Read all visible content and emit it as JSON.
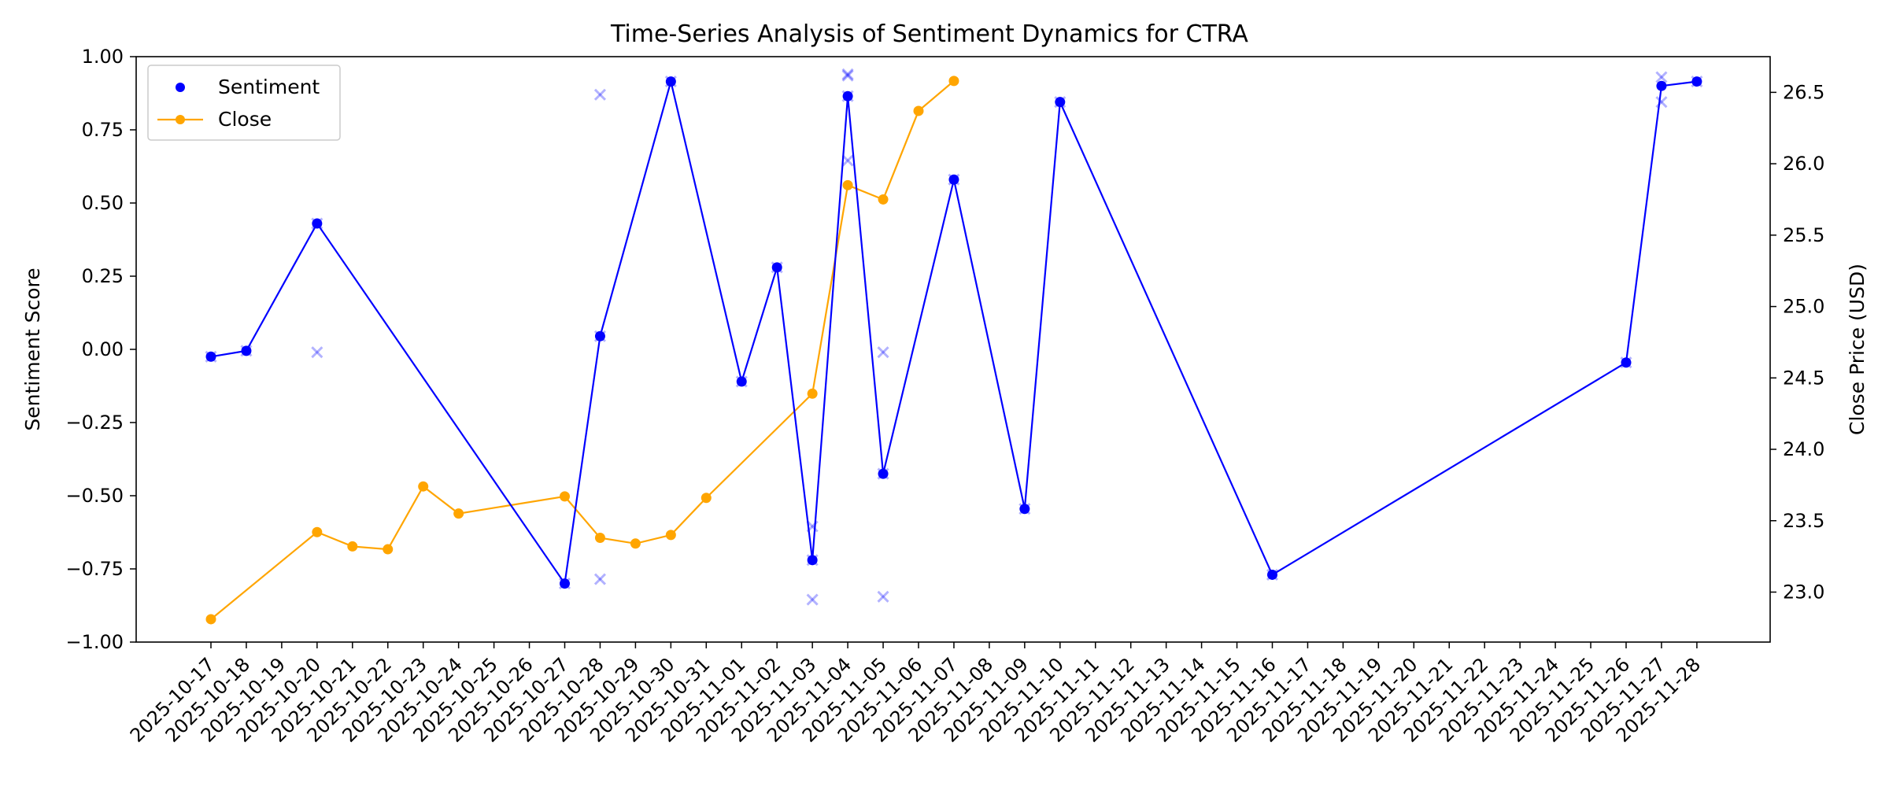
{
  "chart_data": {
    "type": "line",
    "title": "Time-Series Analysis of Sentiment Dynamics for CTRA",
    "xlabel": "",
    "ylabel": "Sentiment Score",
    "y2label": "Close Price (USD)",
    "ylim": [
      -1.0,
      1.0
    ],
    "y2lim": [
      22.65,
      26.75
    ],
    "y_ticks": [
      "−1.00",
      "−0.75",
      "−0.50",
      "−0.25",
      "0.00",
      "0.25",
      "0.50",
      "0.75",
      "1.00"
    ],
    "y2_ticks": [
      "23.0",
      "23.5",
      "24.0",
      "24.5",
      "25.0",
      "25.5",
      "26.0",
      "26.5"
    ],
    "categories": [
      "2025-10-17",
      "2025-10-18",
      "2025-10-19",
      "2025-10-20",
      "2025-10-21",
      "2025-10-22",
      "2025-10-23",
      "2025-10-24",
      "2025-10-25",
      "2025-10-26",
      "2025-10-27",
      "2025-10-28",
      "2025-10-29",
      "2025-10-30",
      "2025-10-31",
      "2025-11-01",
      "2025-11-02",
      "2025-11-03",
      "2025-11-04",
      "2025-11-05",
      "2025-11-06",
      "2025-11-07",
      "2025-11-08",
      "2025-11-09",
      "2025-11-10",
      "2025-11-11",
      "2025-11-12",
      "2025-11-13",
      "2025-11-14",
      "2025-11-15",
      "2025-11-16",
      "2025-11-17",
      "2025-11-18",
      "2025-11-19",
      "2025-11-20",
      "2025-11-21",
      "2025-11-22",
      "2025-11-23",
      "2025-11-24",
      "2025-11-25",
      "2025-11-26",
      "2025-11-27",
      "2025-11-28"
    ],
    "legend_position": "top-left",
    "grid": false,
    "series": [
      {
        "name": "Sentiment",
        "axis": "left",
        "color": "#0000ff",
        "x": [
          "2025-10-17",
          "2025-10-18",
          "2025-10-20",
          "2025-10-27",
          "2025-10-28",
          "2025-10-30",
          "2025-11-01",
          "2025-11-02",
          "2025-11-03",
          "2025-11-04",
          "2025-11-05",
          "2025-11-07",
          "2025-11-09",
          "2025-11-10",
          "2025-11-16",
          "2025-11-26",
          "2025-11-27",
          "2025-11-28"
        ],
        "values": [
          -0.025,
          -0.005,
          0.43,
          -0.8,
          0.045,
          0.915,
          -0.11,
          0.28,
          -0.72,
          0.865,
          -0.425,
          0.58,
          -0.545,
          0.845,
          -0.77,
          -0.045,
          0.9,
          0.915
        ]
      },
      {
        "name": "Close",
        "axis": "right",
        "color": "#ffa500",
        "x": [
          "2025-10-17",
          "2025-10-20",
          "2025-10-21",
          "2025-10-22",
          "2025-10-23",
          "2025-10-24",
          "2025-10-27",
          "2025-10-28",
          "2025-10-29",
          "2025-10-30",
          "2025-10-31",
          "2025-11-03",
          "2025-11-04",
          "2025-11-05",
          "2025-11-06",
          "2025-11-07"
        ],
        "values": [
          22.81,
          23.42,
          23.32,
          23.3,
          23.74,
          23.55,
          23.67,
          23.38,
          23.34,
          23.4,
          23.66,
          24.39,
          25.85,
          25.75,
          26.37,
          26.58
        ]
      }
    ],
    "individual_scores": {
      "color": "#0000ff",
      "x": [
        "2025-10-17",
        "2025-10-18",
        "2025-10-20",
        "2025-10-20",
        "2025-10-20",
        "2025-10-27",
        "2025-10-28",
        "2025-10-28",
        "2025-10-28",
        "2025-10-30",
        "2025-11-01",
        "2025-11-02",
        "2025-11-03",
        "2025-11-03",
        "2025-11-03",
        "2025-11-04",
        "2025-11-04",
        "2025-11-04",
        "2025-11-04",
        "2025-11-05",
        "2025-11-05",
        "2025-11-05",
        "2025-11-07",
        "2025-11-09",
        "2025-11-10",
        "2025-11-16",
        "2025-11-26",
        "2025-11-27",
        "2025-11-27",
        "2025-11-28"
      ],
      "values": [
        -0.025,
        -0.005,
        0.87,
        0.43,
        -0.01,
        -0.8,
        0.87,
        0.045,
        -0.785,
        0.915,
        -0.11,
        0.28,
        -0.605,
        -0.72,
        -0.855,
        0.935,
        0.94,
        0.645,
        0.865,
        -0.425,
        -0.01,
        -0.845,
        0.58,
        -0.545,
        0.845,
        -0.77,
        -0.045,
        0.93,
        0.845,
        0.915
      ]
    }
  }
}
